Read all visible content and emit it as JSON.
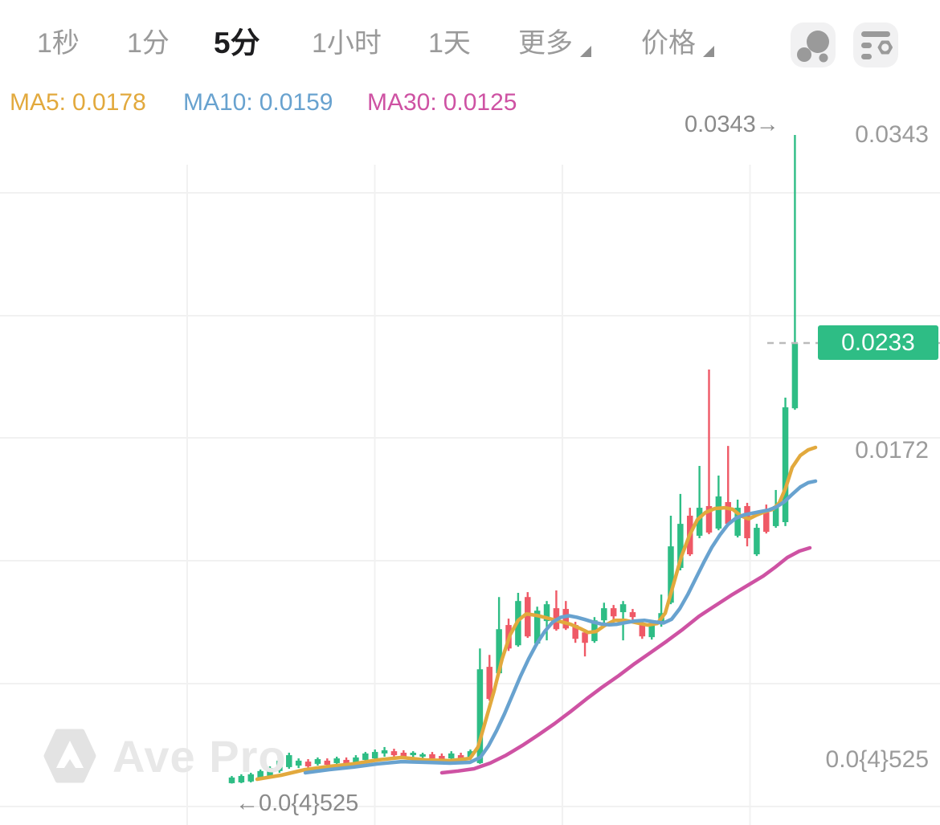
{
  "toolbar": {
    "timeframes": [
      {
        "label": "1秒",
        "active": false
      },
      {
        "label": "1分",
        "active": false
      },
      {
        "label": "5分",
        "active": true
      },
      {
        "label": "1小时",
        "active": false
      },
      {
        "label": "1天",
        "active": false
      }
    ],
    "more_label": "更多",
    "price_label": "价格",
    "icons": [
      "bubbles-icon",
      "indicator-settings-icon"
    ]
  },
  "legend": {
    "items": [
      {
        "label": "MA5:",
        "value": "0.0178",
        "color": "#e2a93d"
      },
      {
        "label": "MA10:",
        "value": "0.0159",
        "color": "#68a2cf"
      },
      {
        "label": "MA30:",
        "value": "0.0125",
        "color": "#ce52a3"
      }
    ]
  },
  "axis": {
    "labels": [
      {
        "text": "0.0343"
      },
      {
        "text": "0.0172"
      },
      {
        "text": "0.0{4}525"
      }
    ]
  },
  "annotations": {
    "high": "0.0343→",
    "low": "←0.0{4}525"
  },
  "price_tag": {
    "text": "0.0233",
    "color": "#2ebd85"
  },
  "watermark": {
    "text": "Ave Pro"
  },
  "chart_data": {
    "type": "candlestick",
    "timeframe": "5分",
    "title": "",
    "legend_position": "top-left",
    "grid": true,
    "y_axis": {
      "min": 0.0,
      "max": 0.0343,
      "labels": [
        "0.0343",
        "0.0172",
        "0.0{4}525"
      ]
    },
    "current_price": 0.0233,
    "session_high": 0.0343,
    "session_low_label": "0.0{4}525",
    "colors": {
      "up": "#2ebd85",
      "down": "#ef5966",
      "grid": "#f1f1f1",
      "dash": "#bbbbbb"
    },
    "candles": [
      [
        3e-05,
        0.00041,
        1e-05,
        0.00033
      ],
      [
        7e-05,
        0.0005,
        3e-05,
        0.00041
      ],
      [
        0.00012,
        0.00058,
        7e-05,
        0.0005
      ],
      [
        0.00025,
        0.00075,
        0.0002,
        0.00067
      ],
      [
        0.00042,
        0.00092,
        0.00037,
        0.00083
      ],
      [
        0.00067,
        0.00143,
        0.00058,
        0.00122
      ],
      [
        0.00088,
        0.00164,
        0.00079,
        0.00151
      ],
      [
        0.00096,
        0.00134,
        0.00083,
        0.00122
      ],
      [
        0.00117,
        0.0013,
        0.00075,
        0.00092
      ],
      [
        0.00105,
        0.00139,
        0.00096,
        0.0013
      ],
      [
        0.00122,
        0.00134,
        0.00083,
        0.001
      ],
      [
        0.00109,
        0.00143,
        0.001,
        0.00134
      ],
      [
        0.00126,
        0.00139,
        0.00088,
        0.00105
      ],
      [
        0.00113,
        0.00151,
        0.00105,
        0.00139
      ],
      [
        0.00126,
        0.00168,
        0.00117,
        0.0016
      ],
      [
        0.00134,
        0.00181,
        0.00126,
        0.00168
      ],
      [
        0.0016,
        0.00194,
        0.00143,
        0.00177
      ],
      [
        0.00172,
        0.00185,
        0.00139,
        0.00151
      ],
      [
        0.00164,
        0.00177,
        0.00134,
        0.00143
      ],
      [
        0.00151,
        0.00172,
        0.00139,
        0.00164
      ],
      [
        0.00143,
        0.00164,
        0.0013,
        0.00156
      ],
      [
        0.00156,
        0.00168,
        0.00122,
        0.00134
      ],
      [
        0.00147,
        0.0016,
        0.00113,
        0.00126
      ],
      [
        0.00134,
        0.00172,
        0.00126,
        0.0016
      ],
      [
        0.00151,
        0.00164,
        0.00117,
        0.0013
      ],
      [
        0.00141,
        0.00181,
        0.00134,
        0.00172
      ],
      [
        0.00109,
        0.00715,
        0.00105,
        0.00605
      ],
      [
        0.00618,
        0.00681,
        0.00439,
        0.00448
      ],
      [
        0.00584,
        0.00987,
        0.00575,
        0.00817
      ],
      [
        0.00839,
        0.00873,
        0.00702,
        0.00715
      ],
      [
        0.00732,
        0.01009,
        0.00724,
        0.00966
      ],
      [
        0.00987,
        0.01013,
        0.00771,
        0.00779
      ],
      [
        0.00741,
        0.00936,
        0.00732,
        0.00915
      ],
      [
        0.0086,
        0.00966,
        0.00758,
        0.00949
      ],
      [
        0.00928,
        0.01022,
        0.00809,
        0.00817
      ],
      [
        0.00924,
        0.00966,
        0.00813,
        0.00821
      ],
      [
        0.00839,
        0.00856,
        0.00745,
        0.00766
      ],
      [
        0.008,
        0.00817,
        0.00673,
        0.00745
      ],
      [
        0.00754,
        0.00881,
        0.00745,
        0.00864
      ],
      [
        0.00864,
        0.00957,
        0.0083,
        0.00928
      ],
      [
        0.00928,
        0.00945,
        0.00851,
        0.00885
      ],
      [
        0.00907,
        0.00966,
        0.00758,
        0.00949
      ],
      [
        0.00907,
        0.00924,
        0.00864,
        0.00881
      ],
      [
        0.00851,
        0.00864,
        0.00766,
        0.00779
      ],
      [
        0.00775,
        0.00856,
        0.00762,
        0.00843
      ],
      [
        0.00843,
        0.01,
        0.0083,
        0.00902
      ],
      [
        0.00957,
        0.01417,
        0.00949,
        0.01255
      ],
      [
        0.01141,
        0.01532,
        0.01128,
        0.01374
      ],
      [
        0.01417,
        0.01459,
        0.01204,
        0.01213
      ],
      [
        0.01311,
        0.0168,
        0.01298,
        0.01459
      ],
      [
        0.01468,
        0.0219,
        0.01319,
        0.01328
      ],
      [
        0.01349,
        0.01629,
        0.0134,
        0.01519
      ],
      [
        0.01489,
        0.01786,
        0.01366,
        0.01374
      ],
      [
        0.01311,
        0.01502,
        0.01302,
        0.01459
      ],
      [
        0.01468,
        0.01485,
        0.01255,
        0.01298
      ],
      [
        0.01213,
        0.01374,
        0.01204,
        0.01353
      ],
      [
        0.01434,
        0.01476,
        0.01323,
        0.01332
      ],
      [
        0.01362,
        0.01553,
        0.01353,
        0.01468
      ],
      [
        0.01383,
        0.02041,
        0.01362,
        0.0199
      ],
      [
        0.01985,
        0.0343,
        0.01977,
        0.0233
      ]
    ],
    "ma_series": [
      {
        "name": "MA5",
        "period": 5,
        "value": 0.0178,
        "color": "#e2a93d",
        "points": [
          [
            320,
            0.00024
          ],
          [
            350,
            0.00045
          ],
          [
            380,
            0.00075
          ],
          [
            410,
            0.00092
          ],
          [
            440,
            0.00105
          ],
          [
            470,
            0.00126
          ],
          [
            500,
            0.00139
          ],
          [
            530,
            0.00126
          ],
          [
            560,
            0.00122
          ],
          [
            585,
            0.00134
          ],
          [
            595,
            0.00194
          ],
          [
            605,
            0.00342
          ],
          [
            615,
            0.00491
          ],
          [
            625,
            0.0066
          ],
          [
            635,
            0.00788
          ],
          [
            645,
            0.00864
          ],
          [
            655,
            0.00898
          ],
          [
            668,
            0.0089
          ],
          [
            680,
            0.00877
          ],
          [
            695,
            0.0086
          ],
          [
            710,
            0.00843
          ],
          [
            722,
            0.00821
          ],
          [
            732,
            0.008
          ],
          [
            742,
            0.00805
          ],
          [
            752,
            0.00835
          ],
          [
            765,
            0.00864
          ],
          [
            778,
            0.00864
          ],
          [
            792,
            0.00851
          ],
          [
            806,
            0.00839
          ],
          [
            818,
            0.00847
          ],
          [
            828,
            0.00902
          ],
          [
            838,
            0.01051
          ],
          [
            848,
            0.012
          ],
          [
            858,
            0.01311
          ],
          [
            868,
            0.01396
          ],
          [
            878,
            0.01434
          ],
          [
            890,
            0.01455
          ],
          [
            902,
            0.01459
          ],
          [
            912,
            0.01451
          ],
          [
            922,
            0.01417
          ],
          [
            932,
            0.014
          ],
          [
            942,
            0.01421
          ],
          [
            952,
            0.01438
          ],
          [
            962,
            0.01451
          ],
          [
            970,
            0.01485
          ],
          [
            978,
            0.01565
          ],
          [
            986,
            0.01672
          ],
          [
            996,
            0.01735
          ],
          [
            1006,
            0.01765
          ],
          [
            1015,
            0.01778
          ]
        ]
      },
      {
        "name": "MA10",
        "period": 10,
        "value": 0.0159,
        "color": "#68a2cf",
        "points": [
          [
            380,
            0.00058
          ],
          [
            410,
            0.00075
          ],
          [
            440,
            0.00088
          ],
          [
            470,
            0.00105
          ],
          [
            500,
            0.00117
          ],
          [
            530,
            0.00113
          ],
          [
            560,
            0.00109
          ],
          [
            585,
            0.00113
          ],
          [
            598,
            0.0014
          ],
          [
            608,
            0.002
          ],
          [
            618,
            0.0028
          ],
          [
            628,
            0.0037
          ],
          [
            638,
            0.0047
          ],
          [
            648,
            0.0057
          ],
          [
            658,
            0.0066
          ],
          [
            668,
            0.0074
          ],
          [
            678,
            0.00805
          ],
          [
            688,
            0.00855
          ],
          [
            698,
            0.0088
          ],
          [
            708,
            0.00888
          ],
          [
            718,
            0.0088
          ],
          [
            728,
            0.00868
          ],
          [
            738,
            0.00855
          ],
          [
            748,
            0.00845
          ],
          [
            758,
            0.0084
          ],
          [
            768,
            0.00843
          ],
          [
            778,
            0.00851
          ],
          [
            790,
            0.0086
          ],
          [
            802,
            0.00864
          ],
          [
            814,
            0.00856
          ],
          [
            826,
            0.0085
          ],
          [
            836,
            0.0087
          ],
          [
            846,
            0.00925
          ],
          [
            856,
            0.01
          ],
          [
            866,
            0.01085
          ],
          [
            876,
            0.0117
          ],
          [
            886,
            0.0125
          ],
          [
            896,
            0.01315
          ],
          [
            906,
            0.0137
          ],
          [
            916,
            0.01404
          ],
          [
            926,
            0.01421
          ],
          [
            936,
            0.0143
          ],
          [
            946,
            0.01438
          ],
          [
            956,
            0.01446
          ],
          [
            966,
            0.01462
          ],
          [
            976,
            0.0149
          ],
          [
            986,
            0.0153
          ],
          [
            996,
            0.01568
          ],
          [
            1006,
            0.01592
          ],
          [
            1015,
            0.016
          ]
        ]
      },
      {
        "name": "MA30",
        "period": 30,
        "value": 0.0125,
        "color": "#ce52a3",
        "points": [
          [
            550,
            0.00058
          ],
          [
            570,
            0.00067
          ],
          [
            590,
            0.00079
          ],
          [
            610,
            0.00109
          ],
          [
            630,
            0.00151
          ],
          [
            650,
            0.00202
          ],
          [
            670,
            0.00258
          ],
          [
            690,
            0.00317
          ],
          [
            710,
            0.00381
          ],
          [
            730,
            0.00448
          ],
          [
            750,
            0.00512
          ],
          [
            770,
            0.00571
          ],
          [
            790,
            0.00635
          ],
          [
            810,
            0.00694
          ],
          [
            830,
            0.00754
          ],
          [
            850,
            0.00817
          ],
          [
            870,
            0.00885
          ],
          [
            890,
            0.00941
          ],
          [
            910,
            0.00996
          ],
          [
            930,
            0.01047
          ],
          [
            950,
            0.01098
          ],
          [
            965,
            0.01145
          ],
          [
            980,
            0.01196
          ],
          [
            995,
            0.0123
          ],
          [
            1008,
            0.01247
          ]
        ]
      }
    ]
  }
}
